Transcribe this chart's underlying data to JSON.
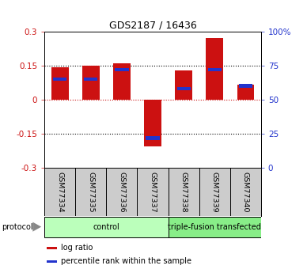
{
  "title": "GDS2187 / 16436",
  "samples": [
    "GSM77334",
    "GSM77335",
    "GSM77336",
    "GSM77337",
    "GSM77338",
    "GSM77339",
    "GSM77340"
  ],
  "log_ratio": [
    0.143,
    0.148,
    0.16,
    -0.205,
    0.13,
    0.27,
    0.065
  ],
  "percentile_rank": [
    65,
    65,
    72,
    22,
    58,
    72,
    60
  ],
  "bar_width": 0.55,
  "red_color": "#cc1111",
  "blue_color": "#2233cc",
  "ylim_left": [
    -0.3,
    0.3
  ],
  "ylim_right": [
    0,
    100
  ],
  "yticks_left": [
    -0.3,
    -0.15,
    0,
    0.15,
    0.3
  ],
  "ytick_labels_left": [
    "-0.3",
    "-0.15",
    "0",
    "0.15",
    "0.3"
  ],
  "yticks_right": [
    0,
    25,
    50,
    75,
    100
  ],
  "ytick_labels_right": [
    "0",
    "25",
    "50",
    "75",
    "100%"
  ],
  "dotted_lines_black": [
    -0.15,
    0.15
  ],
  "zero_line_color": "#cc1111",
  "groups": [
    {
      "label": "control",
      "start": 0,
      "end": 3,
      "color": "#bbffbb"
    },
    {
      "label": "triple-fusion transfected",
      "start": 4,
      "end": 6,
      "color": "#88ee88"
    }
  ],
  "protocol_label": "protocol",
  "legend_items": [
    {
      "color": "#cc1111",
      "label": "log ratio"
    },
    {
      "color": "#2233cc",
      "label": "percentile rank within the sample"
    }
  ],
  "bg_color": "#ffffff",
  "tick_label_color_left": "#cc1111",
  "tick_label_color_right": "#2233cc",
  "panel_color": "#cccccc",
  "panel_border_color": "#888888"
}
